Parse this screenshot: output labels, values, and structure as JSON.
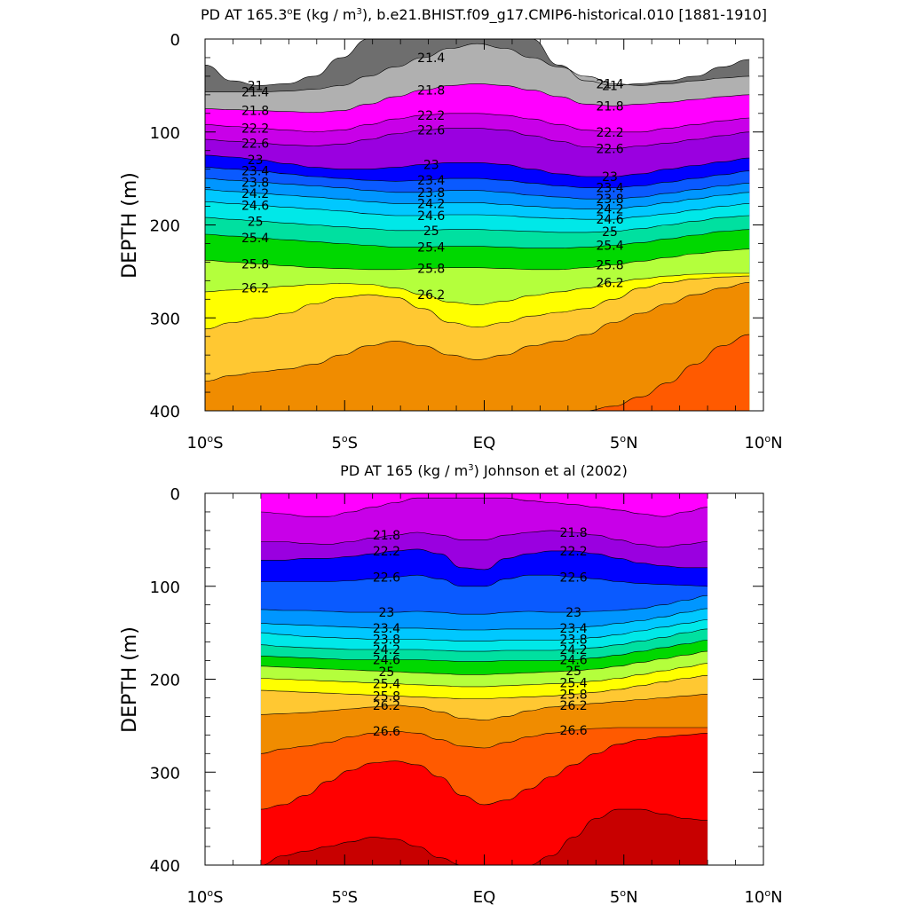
{
  "chart_data": [
    {
      "type": "contour",
      "title": "PD AT 165.3°E (kg / m³), b.e21.BHIST.f09_g17.CMIP6-historical.010 [1881-1910]",
      "title_parts": {
        "a": "PD AT 165.3",
        "a_sup": "o",
        "b": "E (kg / m",
        "b_sup": "3",
        "c": "), b.e21.BHIST.f09_g17.CMIP6-historical.010 [1881-1910]"
      },
      "ylabel": "DEPTH (m)",
      "xlabel": "",
      "x_range": [
        -10,
        10
      ],
      "y_range": [
        0,
        400
      ],
      "y_inverted": true,
      "x_ticks": [
        {
          "x": -10,
          "label": "10",
          "sup": "o",
          "suffix": "S"
        },
        {
          "x": -5,
          "label": "5",
          "sup": "o",
          "suffix": "S"
        },
        {
          "x": 0,
          "label": "EQ",
          "sup": "",
          "suffix": ""
        },
        {
          "x": 5,
          "label": "5",
          "sup": "o",
          "suffix": "N"
        },
        {
          "x": 10,
          "label": "10",
          "sup": "o",
          "suffix": "N"
        }
      ],
      "y_ticks": [
        0,
        100,
        200,
        300,
        400
      ],
      "data_x": [
        -10,
        9.5
      ],
      "contour_levels": [
        "21",
        "21.4",
        "21.8",
        "22.2",
        "22.6",
        "23",
        "23.4",
        "23.8",
        "24.2",
        "24.6",
        "25",
        "25.4",
        "25.8",
        "26.2"
      ],
      "isopycnals": [
        {
          "level": "21",
          "depths": [
            28,
            45,
            50,
            48,
            40,
            20,
            0,
            0,
            0,
            0,
            0,
            0,
            0,
            28,
            45,
            50,
            48,
            45,
            40,
            30,
            22
          ]
        },
        {
          "level": "21.4",
          "depths": [
            57,
            57,
            57,
            56,
            54,
            50,
            40,
            30,
            20,
            10,
            5,
            10,
            20,
            30,
            40,
            48,
            50,
            48,
            45,
            42,
            40
          ]
        },
        {
          "level": "21.8",
          "depths": [
            75,
            76,
            77,
            78,
            79,
            77,
            70,
            62,
            55,
            50,
            48,
            50,
            55,
            62,
            70,
            72,
            70,
            68,
            65,
            62,
            60
          ]
        },
        {
          "level": "22.2",
          "depths": [
            92,
            94,
            96,
            98,
            100,
            98,
            92,
            86,
            82,
            80,
            80,
            82,
            86,
            92,
            98,
            100,
            100,
            96,
            92,
            88,
            85
          ]
        },
        {
          "level": "22.6",
          "depths": [
            108,
            110,
            112,
            114,
            115,
            113,
            108,
            102,
            98,
            96,
            96,
            98,
            104,
            110,
            116,
            118,
            115,
            112,
            108,
            104,
            100
          ]
        },
        {
          "level": "23",
          "depths": [
            125,
            127,
            130,
            134,
            138,
            140,
            140,
            138,
            135,
            133,
            133,
            135,
            140,
            145,
            148,
            148,
            145,
            140,
            136,
            132,
            128
          ]
        },
        {
          "level": "23.4",
          "depths": [
            138,
            140,
            142,
            145,
            148,
            150,
            152,
            153,
            152,
            150,
            150,
            152,
            155,
            158,
            160,
            160,
            158,
            154,
            150,
            146,
            142
          ]
        },
        {
          "level": "23.8",
          "depths": [
            150,
            152,
            154,
            156,
            158,
            160,
            163,
            165,
            165,
            163,
            163,
            165,
            168,
            170,
            172,
            172,
            170,
            166,
            162,
            158,
            155
          ]
        },
        {
          "level": "24.2",
          "depths": [
            162,
            164,
            166,
            168,
            170,
            172,
            175,
            177,
            177,
            176,
            176,
            178,
            180,
            182,
            183,
            183,
            180,
            176,
            172,
            168,
            165
          ]
        },
        {
          "level": "24.6",
          "depths": [
            175,
            177,
            179,
            181,
            183,
            185,
            188,
            190,
            190,
            189,
            189,
            190,
            192,
            193,
            194,
            194,
            191,
            188,
            184,
            180,
            177
          ]
        },
        {
          "level": "25",
          "depths": [
            192,
            194,
            196,
            198,
            200,
            202,
            204,
            206,
            206,
            205,
            205,
            206,
            207,
            208,
            208,
            207,
            204,
            200,
            196,
            192,
            190
          ]
        },
        {
          "level": "25.4",
          "depths": [
            210,
            212,
            214,
            216,
            218,
            220,
            222,
            224,
            224,
            223,
            223,
            224,
            225,
            225,
            224,
            222,
            219,
            215,
            211,
            207,
            205
          ]
        },
        {
          "level": "25.8",
          "depths": [
            238,
            240,
            242,
            244,
            246,
            247,
            248,
            248,
            247,
            246,
            246,
            247,
            248,
            248,
            246,
            243,
            239,
            235,
            231,
            228,
            226
          ]
        },
        {
          "level": "26.2",
          "depths": [
            272,
            270,
            268,
            266,
            264,
            263,
            264,
            268,
            275,
            283,
            286,
            282,
            276,
            272,
            268,
            262,
            258,
            255,
            253,
            252,
            252
          ]
        },
        {
          "level": "26.6",
          "depths": [
            312,
            305,
            300,
            295,
            285,
            278,
            275,
            278,
            290,
            305,
            310,
            305,
            298,
            294,
            290,
            280,
            268,
            262,
            258,
            256,
            255
          ]
        },
        {
          "level": "27",
          "depths": [
            368,
            362,
            358,
            355,
            350,
            340,
            330,
            325,
            330,
            340,
            345,
            340,
            330,
            325,
            318,
            305,
            295,
            285,
            275,
            268,
            262
          ]
        },
        {
          "level": "27.4",
          "depths": [
            400,
            400,
            400,
            400,
            400,
            400,
            400,
            400,
            400,
            400,
            400,
            400,
            400,
            400,
            400,
            395,
            385,
            370,
            350,
            330,
            318
          ]
        }
      ]
    },
    {
      "type": "contour",
      "title": "PD AT 165 (kg / m³) Johnson et al (2002)",
      "title_parts": {
        "a": "PD AT 165 (kg / m",
        "a_sup": "3",
        "b": ") Johnson et al (2002)",
        "b_sup": "",
        "c": ""
      },
      "ylabel": "DEPTH (m)",
      "xlabel": "",
      "x_range": [
        -10,
        10
      ],
      "y_range": [
        0,
        400
      ],
      "y_inverted": true,
      "x_ticks": [
        {
          "x": -10,
          "label": "10",
          "sup": "o",
          "suffix": "S"
        },
        {
          "x": -5,
          "label": "5",
          "sup": "o",
          "suffix": "S"
        },
        {
          "x": 0,
          "label": "EQ",
          "sup": "",
          "suffix": ""
        },
        {
          "x": 5,
          "label": "5",
          "sup": "o",
          "suffix": "N"
        },
        {
          "x": 10,
          "label": "10",
          "sup": "o",
          "suffix": "N"
        }
      ],
      "y_ticks": [
        0,
        100,
        200,
        300,
        400
      ],
      "data_x": [
        -8,
        8
      ],
      "contour_levels": [
        "21.8",
        "22.2",
        "22.6",
        "23",
        "23.4",
        "23.8",
        "24.2",
        "24.6",
        "25",
        "25.4",
        "25.8",
        "26.2",
        "26.6"
      ],
      "isopycnals": [
        {
          "level": "21",
          "depths": [
            0,
            0,
            0,
            0,
            0,
            0,
            0,
            0,
            0,
            0,
            0,
            0,
            0,
            0,
            0,
            0,
            0,
            0,
            0,
            0,
            0
          ]
        },
        {
          "level": "21.4",
          "depths": [
            20,
            22,
            25,
            25,
            20,
            15,
            10,
            5,
            5,
            5,
            5,
            5,
            8,
            10,
            12,
            15,
            18,
            22,
            25,
            20,
            15
          ]
        },
        {
          "level": "21.8",
          "depths": [
            52,
            52,
            54,
            55,
            52,
            48,
            45,
            42,
            45,
            50,
            50,
            45,
            42,
            40,
            42,
            45,
            50,
            55,
            58,
            55,
            52
          ]
        },
        {
          "level": "22.2",
          "depths": [
            72,
            72,
            70,
            70,
            68,
            65,
            62,
            60,
            65,
            80,
            82,
            70,
            65,
            62,
            62,
            65,
            70,
            75,
            78,
            80,
            80
          ]
        },
        {
          "level": "22.6",
          "depths": [
            95,
            95,
            95,
            95,
            94,
            92,
            90,
            88,
            92,
            100,
            100,
            92,
            88,
            88,
            90,
            92,
            95,
            97,
            98,
            99,
            100
          ]
        },
        {
          "level": "23",
          "depths": [
            125,
            126,
            126,
            127,
            128,
            128,
            128,
            127,
            128,
            130,
            130,
            128,
            127,
            128,
            128,
            127,
            126,
            124,
            120,
            115,
            110
          ]
        },
        {
          "level": "23.4",
          "depths": [
            140,
            141,
            142,
            143,
            144,
            145,
            145,
            145,
            146,
            147,
            147,
            146,
            146,
            146,
            145,
            143,
            140,
            137,
            133,
            128,
            124
          ]
        },
        {
          "level": "23.8",
          "depths": [
            150,
            152,
            154,
            155,
            156,
            157,
            157,
            157,
            158,
            159,
            159,
            158,
            158,
            158,
            157,
            155,
            152,
            148,
            144,
            140,
            136
          ]
        },
        {
          "level": "24.2",
          "depths": [
            163,
            165,
            166,
            167,
            168,
            168,
            168,
            168,
            169,
            170,
            170,
            169,
            169,
            169,
            168,
            166,
            163,
            159,
            155,
            150,
            146
          ]
        },
        {
          "level": "24.6",
          "depths": [
            175,
            176,
            177,
            178,
            179,
            179,
            179,
            179,
            180,
            181,
            181,
            180,
            180,
            180,
            179,
            177,
            174,
            170,
            166,
            162,
            158
          ]
        },
        {
          "level": "25",
          "depths": [
            186,
            187,
            188,
            189,
            190,
            191,
            192,
            193,
            194,
            195,
            195,
            194,
            193,
            192,
            191,
            189,
            186,
            182,
            178,
            174,
            170
          ]
        },
        {
          "level": "25.4",
          "depths": [
            199,
            200,
            201,
            202,
            203,
            204,
            205,
            206,
            207,
            208,
            208,
            207,
            206,
            205,
            204,
            202,
            199,
            195,
            191,
            187,
            183
          ]
        },
        {
          "level": "25.8",
          "depths": [
            212,
            213,
            214,
            215,
            216,
            217,
            218,
            219,
            220,
            221,
            221,
            220,
            219,
            218,
            216,
            214,
            211,
            207,
            203,
            199,
            196
          ]
        },
        {
          "level": "26.2",
          "depths": [
            238,
            237,
            236,
            234,
            232,
            230,
            228,
            230,
            235,
            242,
            244,
            240,
            234,
            230,
            228,
            226,
            224,
            222,
            220,
            218,
            216
          ]
        },
        {
          "level": "26.6",
          "depths": [
            280,
            275,
            272,
            268,
            262,
            258,
            256,
            258,
            265,
            272,
            274,
            268,
            262,
            258,
            255,
            253,
            252,
            252,
            252,
            252,
            252
          ]
        },
        {
          "level": "27",
          "depths": [
            340,
            335,
            325,
            310,
            298,
            290,
            288,
            292,
            305,
            325,
            335,
            330,
            318,
            305,
            292,
            280,
            270,
            265,
            262,
            260,
            258
          ]
        },
        {
          "level": "27.4",
          "depths": [
            400,
            390,
            385,
            380,
            375,
            370,
            372,
            380,
            392,
            400,
            400,
            400,
            400,
            390,
            370,
            350,
            340,
            340,
            345,
            350,
            352
          ]
        }
      ]
    }
  ],
  "colors": {
    "21": "#B0B0B0",
    "lt21": "#6E6E6E",
    "21.4": "#FF00FF",
    "21.8": "#C800E8",
    "22.2": "#9A00E0",
    "22.6": "#5A1BF0",
    "23": "#0000FF",
    "23.4": "#0A5AFF",
    "23.8": "#0096FF",
    "24.2": "#00C8FF",
    "24.6": "#00E8E8",
    "25": "#00E0A0",
    "25.4": "#00D800",
    "25.8": "#B4FF3C",
    "26.2": "#FFFF00",
    "26.6": "#FFE24A",
    "27": "#FFC832",
    "27.4": "#FFA51E",
    "27.8": "#F08C00",
    "28.2": "#FF5A00",
    "28.6": "#FF0000",
    "29": "#D80000",
    "29.4": "#C80000"
  }
}
